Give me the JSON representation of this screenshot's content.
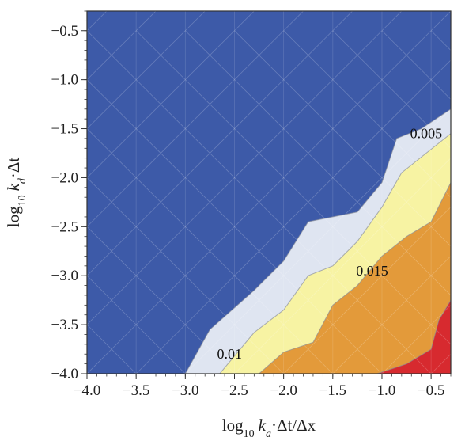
{
  "chart_data": {
    "type": "contour",
    "xlim": [
      -4.0,
      -0.3
    ],
    "ylim": [
      -4.0,
      -0.3
    ],
    "x_ticks": [
      "−4.0",
      "−3.5",
      "−3.0",
      "−2.5",
      "−2.0",
      "−1.5",
      "−1.0",
      "−0.5"
    ],
    "x_tick_values": [
      -4.0,
      -3.5,
      -3.0,
      -2.5,
      -2.0,
      -1.5,
      -1.0,
      -0.5
    ],
    "y_ticks": [
      "−0.5",
      "−1.0",
      "−1.5",
      "−2.0",
      "−2.5",
      "−3.0",
      "−3.5",
      "−4.0"
    ],
    "y_tick_values": [
      -0.5,
      -1.0,
      -1.5,
      -2.0,
      -2.5,
      -3.0,
      -3.5,
      -4.0
    ],
    "xlabel": {
      "prefix": "log",
      "sub": "10",
      "var": "k",
      "varsub": "a",
      "rest": "·Δt/Δx"
    },
    "ylabel": {
      "prefix": "log",
      "sub": "10",
      "var": "k",
      "varsub": "d",
      "rest": "·Δt"
    },
    "region_colors": [
      "#3d5aa8",
      "#dfe5f1",
      "#f7f3a3",
      "#e39a3a",
      "#d72a2f"
    ],
    "contour_levels": [
      {
        "level": 0.005,
        "label": "0.005",
        "label_at": [
          -0.55,
          -1.55
        ],
        "points": [
          [
            -3.0,
            -4.0
          ],
          [
            -2.75,
            -3.55
          ],
          [
            -2.3,
            -3.15
          ],
          [
            -2.0,
            -2.85
          ],
          [
            -1.75,
            -2.45
          ],
          [
            -1.25,
            -2.35
          ],
          [
            -1.0,
            -2.05
          ],
          [
            -0.85,
            -1.6
          ],
          [
            -0.6,
            -1.5
          ],
          [
            -0.3,
            -1.3
          ]
        ]
      },
      {
        "level": 0.01,
        "label": "0.01",
        "label_at": [
          -2.55,
          -3.8
        ],
        "points": [
          [
            -2.65,
            -4.0
          ],
          [
            -2.3,
            -3.58
          ],
          [
            -2.0,
            -3.35
          ],
          [
            -1.75,
            -3.0
          ],
          [
            -1.5,
            -2.9
          ],
          [
            -1.25,
            -2.65
          ],
          [
            -1.0,
            -2.3
          ],
          [
            -0.8,
            -1.95
          ],
          [
            -0.55,
            -1.75
          ],
          [
            -0.3,
            -1.55
          ]
        ]
      },
      {
        "level": 0.015,
        "label": "0.015",
        "label_at": [
          -1.1,
          -2.95
        ],
        "points": [
          [
            -2.25,
            -4.0
          ],
          [
            -2.0,
            -3.78
          ],
          [
            -1.7,
            -3.68
          ],
          [
            -1.5,
            -3.3
          ],
          [
            -1.25,
            -3.1
          ],
          [
            -1.0,
            -2.8
          ],
          [
            -0.75,
            -2.6
          ],
          [
            -0.5,
            -2.45
          ],
          [
            -0.3,
            -2.05
          ]
        ]
      },
      {
        "level": 0.02,
        "label": "",
        "points": [
          [
            -1.05,
            -4.0
          ],
          [
            -0.75,
            -3.9
          ],
          [
            -0.5,
            -3.75
          ],
          [
            -0.42,
            -3.45
          ],
          [
            -0.3,
            -3.25
          ]
        ]
      }
    ]
  }
}
